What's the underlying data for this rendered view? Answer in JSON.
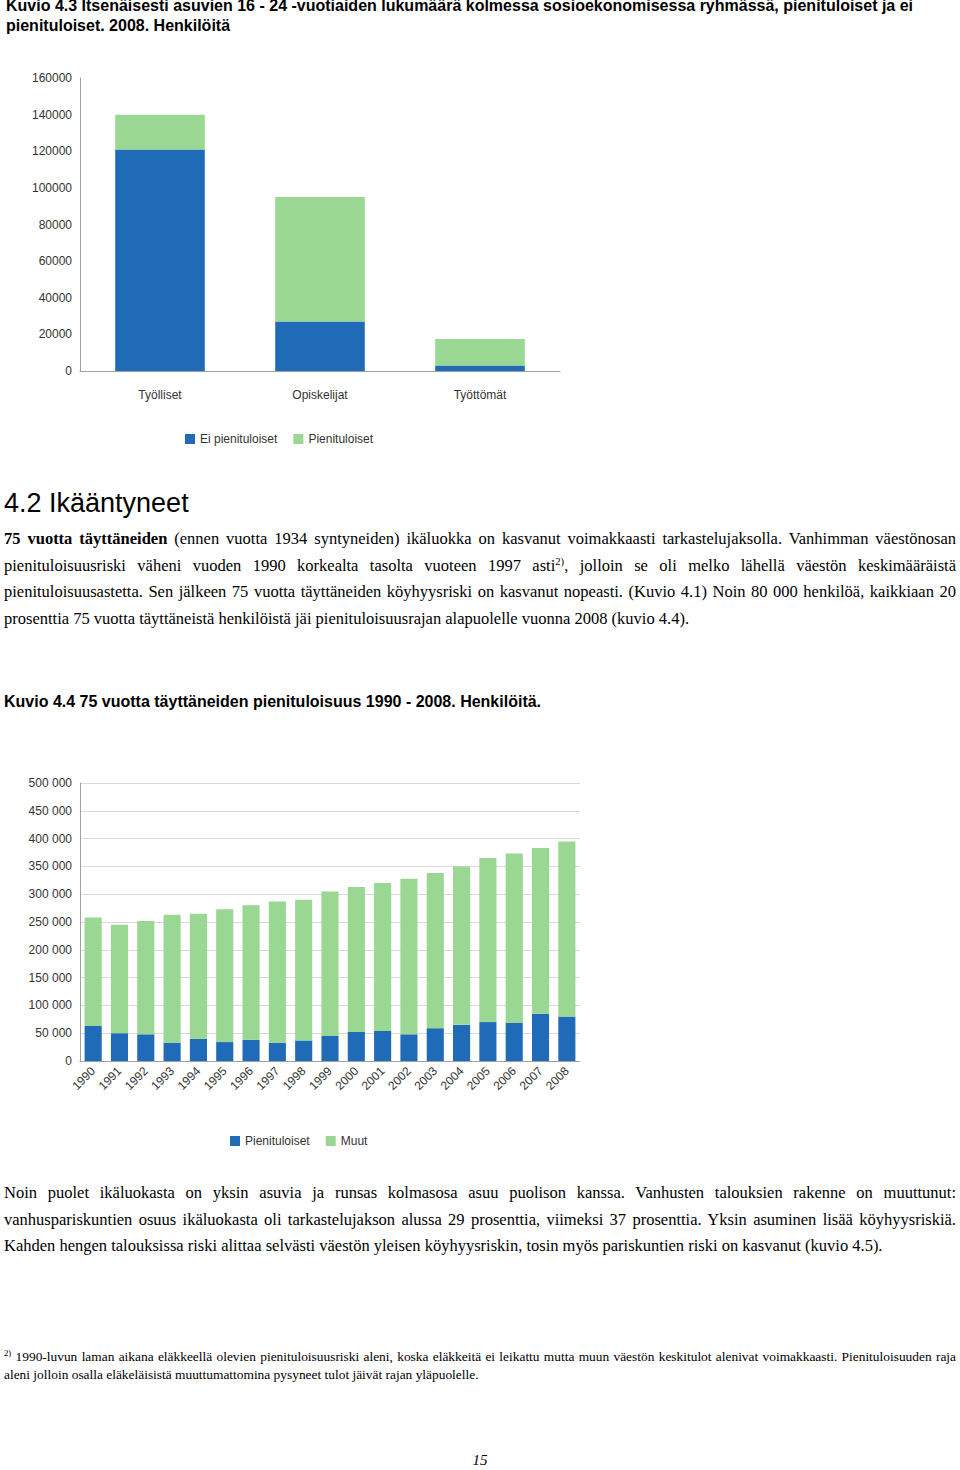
{
  "page": {
    "caption_top": "Kuvio 4.3 Itsenäisesti asuvien 16 - 24 -vuotiaiden lukumäärä kolmessa sosioekonomisessa ryhmässä, pienituloiset ja ei pienituloiset. 2008. Henkilöitä",
    "heading": "4.2 Ikääntyneet",
    "paragraph1": [
      {
        "text": "75 vuotta täyttäneiden",
        "bold": true
      },
      {
        "text": " (ennen vuotta 1934 syntyneiden) ikäluokka on kasvanut voimakkaasti tarkastelujaksolla. Vanhimman väestönosan pienituloisuusriski väheni vuoden 1990 korkealta tasolta vuoteen 1997 asti"
      },
      {
        "text": "2)",
        "sup": true
      },
      {
        "text": ", jolloin se oli melko lähellä väestön keskimääräistä pienituloisuusastetta. Sen jälkeen 75 vuotta täyttäneiden köyhyysriski on kasvanut nopeasti. (Kuvio 4.1) Noin 80 000 henkilöä, kaikkiaan 20 prosenttia 75 vuotta täyttäneistä henkilöistä jäi pienituloisuusrajan alapuolelle vuonna 2008 (kuvio 4.4)."
      }
    ],
    "caption_chart2": "Kuvio 4.4 75 vuotta täyttäneiden pienituloisuus 1990 - 2008. Henkilöitä.",
    "paragraph2": "Noin puolet ikäluokasta on yksin asuvia ja runsas kolmasosa asuu puolison kanssa. Vanhusten talouksien rakenne on muuttunut: vanhuspariskuntien osuus ikäluokasta oli tarkastelujakson alussa 29 prosenttia, viimeksi 37 prosenttia. Yksin asuminen lisää köyhyysriskiä. Kahden hengen talouksissa riski alittaa selvästi väestön yleisen köyhyysriskin, tosin myös pariskuntien riski on kasvanut (kuvio 4.5).",
    "footnote": {
      "marker": "2)",
      "text": "1990-luvun laman aikana eläkkeellä olevien pienituloisuusriski aleni, koska eläkkeitä ei leikattu mutta muun väestön keskitulot alenivat voimakkaasti. Pienituloisuuden raja aleni jolloin osalla eläkeläisistä muuttumattomina pysyneet tulot jäivät rajan yläpuolelle."
    },
    "page_number": "15"
  },
  "chart_data": [
    {
      "type": "bar",
      "stacked": true,
      "grid": false,
      "legend": "bottom",
      "categories": [
        "Työlliset",
        "Opiskelijat",
        "Työttömät"
      ],
      "series": [
        {
          "name": "Ei pienituloiset",
          "color": "#1f6bb8",
          "values": [
            121000,
            27000,
            3000
          ]
        },
        {
          "name": "Pienituloiset",
          "color": "#99d793",
          "values": [
            19000,
            68000,
            14500
          ]
        }
      ],
      "ylim": [
        0,
        160000
      ],
      "yticks": [
        0,
        20000,
        40000,
        60000,
        80000,
        100000,
        120000,
        140000,
        160000
      ]
    },
    {
      "type": "bar",
      "stacked": true,
      "grid": true,
      "legend": "bottom",
      "categories": [
        "1990",
        "1991",
        "1992",
        "1993",
        "1994",
        "1995",
        "1996",
        "1997",
        "1998",
        "1999",
        "2000",
        "2001",
        "2002",
        "2003",
        "2004",
        "2005",
        "2006",
        "2007",
        "2008"
      ],
      "series": [
        {
          "name": "Pienituloiset",
          "color": "#1f6bb8",
          "values": [
            63000,
            50000,
            48000,
            33000,
            40000,
            34000,
            38000,
            33000,
            37000,
            45000,
            52000,
            54000,
            48000,
            59000,
            65000,
            70000,
            69000,
            85000,
            80000
          ]
        },
        {
          "name": "Muut",
          "color": "#99d793",
          "values": [
            195000,
            195000,
            204000,
            230000,
            225000,
            239000,
            242000,
            254000,
            253000,
            260000,
            261000,
            266000,
            280000,
            279000,
            285000,
            295000,
            304000,
            298000,
            315000
          ]
        }
      ],
      "ylim": [
        0,
        500000
      ],
      "yticks": [
        0,
        {
          "value": 50000,
          "label": "50 000"
        },
        {
          "value": 100000,
          "label": "100 000"
        },
        {
          "value": 150000,
          "label": "150 000"
        },
        {
          "value": 200000,
          "label": "200 000"
        },
        {
          "value": 250000,
          "label": "250 000"
        },
        {
          "value": 300000,
          "label": "300 000"
        },
        {
          "value": 350000,
          "label": "350 000"
        },
        {
          "value": 400000,
          "label": "400 000"
        },
        {
          "value": 450000,
          "label": "450 000"
        },
        {
          "value": 500000,
          "label": "500 000"
        }
      ]
    }
  ]
}
